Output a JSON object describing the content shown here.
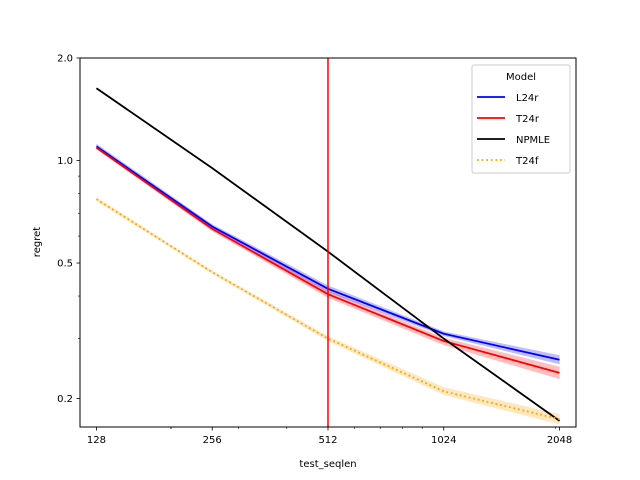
{
  "chart_data": {
    "type": "line",
    "xlabel": "test_seqlen",
    "ylabel": "regret",
    "xscale": "log2",
    "yscale": "log",
    "xlim": [
      116,
      2260
    ],
    "ylim": [
      0.165,
      2.0
    ],
    "x": [
      128,
      256,
      512,
      1024,
      2048
    ],
    "x_tick_labels": [
      "128",
      "256",
      "512",
      "1024",
      "2048"
    ],
    "y_ticks": [
      0.2,
      0.5,
      1.0,
      2.0
    ],
    "y_tick_labels": [
      "0.2",
      "0.5",
      "1.0",
      "2.0"
    ],
    "series": [
      {
        "name": "L24r",
        "color": "#0000ff",
        "style": "solid",
        "band": true,
        "values": [
          1.1,
          0.64,
          0.42,
          0.31,
          0.26
        ],
        "lower": [
          1.09,
          0.63,
          0.41,
          0.305,
          0.252
        ],
        "upper": [
          1.12,
          0.65,
          0.43,
          0.315,
          0.268
        ]
      },
      {
        "name": "T24r",
        "color": "#ff0000",
        "style": "solid",
        "band": true,
        "values": [
          1.09,
          0.63,
          0.405,
          0.295,
          0.238
        ],
        "lower": [
          1.08,
          0.62,
          0.395,
          0.287,
          0.228
        ],
        "upper": [
          1.1,
          0.64,
          0.415,
          0.302,
          0.248
        ]
      },
      {
        "name": "NPMLE",
        "color": "#000000",
        "style": "solid",
        "band": false,
        "values": [
          1.63,
          0.95,
          0.54,
          0.3,
          0.172
        ]
      },
      {
        "name": "T24f",
        "color": "#ffa500",
        "style": "dotted",
        "band": true,
        "values": [
          0.77,
          0.47,
          0.3,
          0.21,
          0.174
        ],
        "lower": [
          0.76,
          0.465,
          0.295,
          0.205,
          0.168
        ],
        "upper": [
          0.78,
          0.475,
          0.305,
          0.216,
          0.18
        ]
      }
    ],
    "vline": {
      "x": 512,
      "color": "#ff0000"
    },
    "legend": {
      "title": "Model",
      "position": "top-right"
    },
    "grid": false
  }
}
